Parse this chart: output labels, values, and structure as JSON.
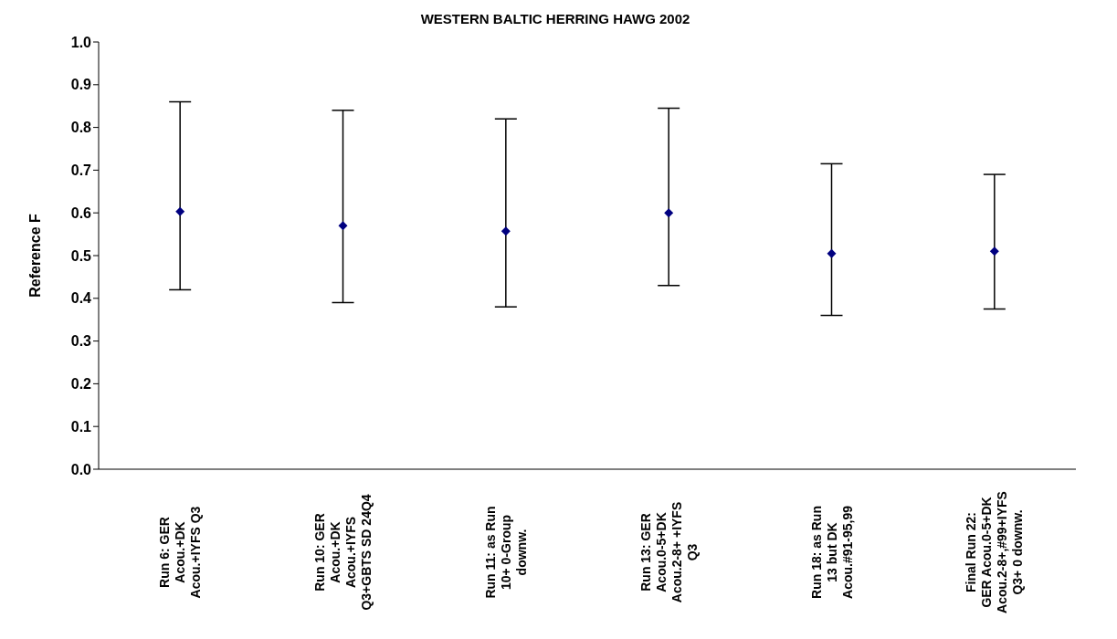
{
  "chart_data": {
    "type": "scatter",
    "title": "WESTERN BALTIC HERRING HAWG 2002",
    "ylabel": "Reference F",
    "categories": [
      "Run 6: GER Acou.+DK Acou.+IYFS Q3",
      "Run 10: GER Acou.+DK Acou.+IYFS Q3+GBTS SD 24Q4",
      "Run 11: as Run 10+ 0-Group downw.",
      "Run 13:  GER Acou.0-5+DK Acou.2-8+ +IYFS Q3",
      "Run 18: as Run 13 but DK Acou.#91-95,99",
      "Final Run 22: GER Acou.0-5+DK Acou.2-8+,#99+IYFS Q3+ 0 downw."
    ],
    "values": [
      0.603,
      0.57,
      0.557,
      0.6,
      0.505,
      0.51
    ],
    "errors": [
      [
        0.42,
        0.86
      ],
      [
        0.39,
        0.84
      ],
      [
        0.38,
        0.82
      ],
      [
        0.43,
        0.845
      ],
      [
        0.36,
        0.715
      ],
      [
        0.375,
        0.69
      ]
    ],
    "color": "#000080",
    "marker": "diamond",
    "grid": false,
    "legend": false,
    "ylim": [
      0,
      1
    ],
    "yticks": [
      {
        "value": 0,
        "label": "0.0"
      },
      0.1,
      0.2,
      0.3,
      0.4,
      0.5,
      0.6,
      0.7,
      0.8,
      0.9,
      {
        "value": 1,
        "label": "1.0"
      }
    ]
  }
}
